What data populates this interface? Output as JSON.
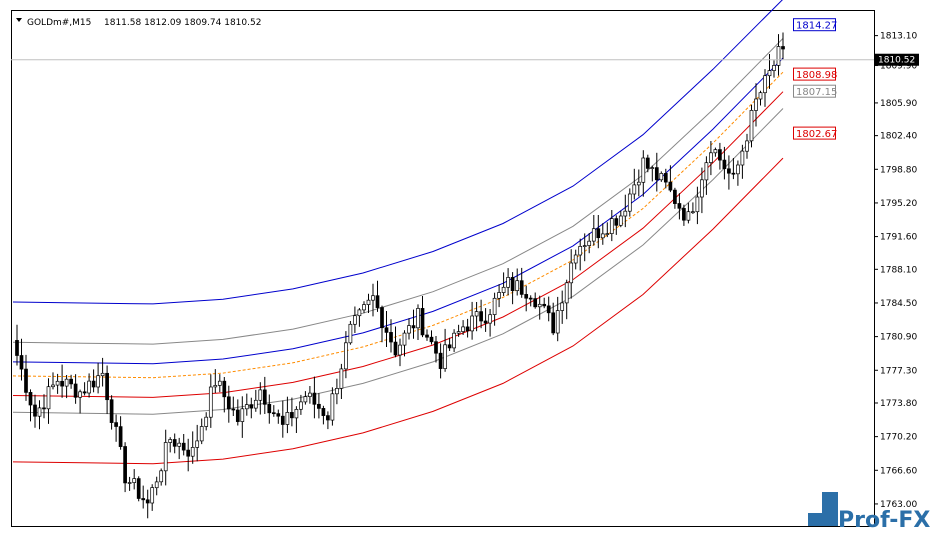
{
  "header": {
    "symbol": "GOLDm#,M15",
    "values": "1811.58 1812.09 1809.74 1810.52"
  },
  "current_price": "1810.52",
  "level_labels": [
    {
      "text": "1814.27",
      "color": "#0000cc"
    },
    {
      "text": "1808.98",
      "color": "#dd0000"
    },
    {
      "text": "1807.15",
      "color": "#888888"
    },
    {
      "text": "1802.67",
      "color": "#dd0000"
    }
  ],
  "logo": {
    "text": "Prof-FX",
    "color": "#2b6fa8"
  },
  "chart_data": {
    "type": "candlestick",
    "symbol": "GOLDm#",
    "timeframe": "M15",
    "ylim": [
      1760.64,
      1815.84
    ],
    "yticks": [
      "1813.10",
      "1809.90",
      "1805.90",
      "1802.40",
      "1798.80",
      "1795.20",
      "1791.60",
      "1788.10",
      "1784.50",
      "1780.90",
      "1777.30",
      "1773.80",
      "1770.20",
      "1766.60",
      "1763.00"
    ],
    "grid": false,
    "colors": {
      "bull": "#ffffff",
      "bear": "#000000",
      "outline": "#000000"
    },
    "channel_lines": [
      {
        "role": "upper-outer",
        "color": "#0000cc",
        "values": [
          1784.6,
          1784.5,
          1784.4,
          1784.9,
          1786.0,
          1787.7,
          1790.0,
          1793.0,
          1797.0,
          1802.5,
          1809.5,
          1817.0
        ]
      },
      {
        "role": "upper-inner",
        "color": "#888888",
        "values": [
          1780.3,
          1780.2,
          1780.1,
          1780.6,
          1781.7,
          1783.4,
          1785.7,
          1788.7,
          1792.7,
          1798.2,
          1805.2,
          1812.8
        ]
      },
      {
        "role": "upper-mid",
        "color": "#0000cc",
        "values": [
          1778.2,
          1778.1,
          1778.0,
          1778.5,
          1779.6,
          1781.3,
          1783.6,
          1786.6,
          1790.6,
          1796.1,
          1803.1,
          1810.7
        ]
      },
      {
        "role": "center",
        "color": "#ff8c00",
        "style": "dashed",
        "values": [
          1776.7,
          1776.6,
          1776.5,
          1777.0,
          1778.1,
          1779.8,
          1782.1,
          1785.1,
          1789.1,
          1794.6,
          1801.6,
          1809.2
        ]
      },
      {
        "role": "lower-mid",
        "color": "#dd0000",
        "values": [
          1774.6,
          1774.5,
          1774.4,
          1774.9,
          1776.0,
          1777.7,
          1780.0,
          1783.0,
          1787.0,
          1792.5,
          1799.5,
          1807.1
        ]
      },
      {
        "role": "lower-inner",
        "color": "#888888",
        "values": [
          1772.8,
          1772.7,
          1772.6,
          1773.1,
          1774.2,
          1775.9,
          1778.2,
          1781.2,
          1785.2,
          1790.7,
          1797.7,
          1805.3
        ]
      },
      {
        "role": "lower-outer",
        "color": "#dd0000",
        "values": [
          1767.5,
          1767.4,
          1767.3,
          1767.8,
          1768.9,
          1770.6,
          1772.9,
          1775.9,
          1779.9,
          1785.4,
          1792.4,
          1800.0
        ]
      }
    ],
    "anchors": [
      {
        "from": 1780.5,
        "to": 1772.5
      },
      {
        "from": 1772.5,
        "to": 1776.3
      },
      {
        "from": 1776.3,
        "to": 1775.0
      },
      {
        "from": 1775.0,
        "to": 1777.0
      },
      {
        "from": 1777.0,
        "to": 1766.0
      },
      {
        "from": 1766.0,
        "to": 1763.0
      },
      {
        "from": 1763.0,
        "to": 1770.0
      },
      {
        "from": 1770.0,
        "to": 1768.5
      },
      {
        "from": 1768.5,
        "to": 1776.2
      },
      {
        "from": 1776.2,
        "to": 1772.0
      },
      {
        "from": 1772.0,
        "to": 1775.3
      },
      {
        "from": 1775.3,
        "to": 1771.2
      },
      {
        "from": 1771.2,
        "to": 1774.6
      },
      {
        "from": 1774.6,
        "to": 1772.5
      },
      {
        "from": 1772.5,
        "to": 1781.5
      },
      {
        "from": 1781.5,
        "to": 1785.0
      },
      {
        "from": 1785.0,
        "to": 1779.5
      },
      {
        "from": 1779.5,
        "to": 1783.0
      },
      {
        "from": 1783.0,
        "to": 1778.3
      },
      {
        "from": 1778.3,
        "to": 1782.0
      },
      {
        "from": 1782.0,
        "to": 1783.3
      },
      {
        "from": 1783.3,
        "to": 1786.5
      },
      {
        "from": 1786.5,
        "to": 1785.8
      },
      {
        "from": 1785.8,
        "to": 1782.0
      },
      {
        "from": 1782.0,
        "to": 1790.5
      },
      {
        "from": 1790.5,
        "to": 1792.2
      },
      {
        "from": 1792.2,
        "to": 1794.0
      },
      {
        "from": 1794.0,
        "to": 1799.5
      },
      {
        "from": 1799.5,
        "to": 1797.0
      },
      {
        "from": 1797.0,
        "to": 1793.5
      },
      {
        "from": 1793.5,
        "to": 1801.5
      },
      {
        "from": 1801.5,
        "to": 1797.5
      },
      {
        "from": 1797.5,
        "to": 1806.0
      },
      {
        "from": 1806.0,
        "to": 1811.0
      },
      {
        "from": 1811.0,
        "to": 1810.5
      }
    ],
    "candles_per_anchor": 5,
    "candle_count": 171
  }
}
